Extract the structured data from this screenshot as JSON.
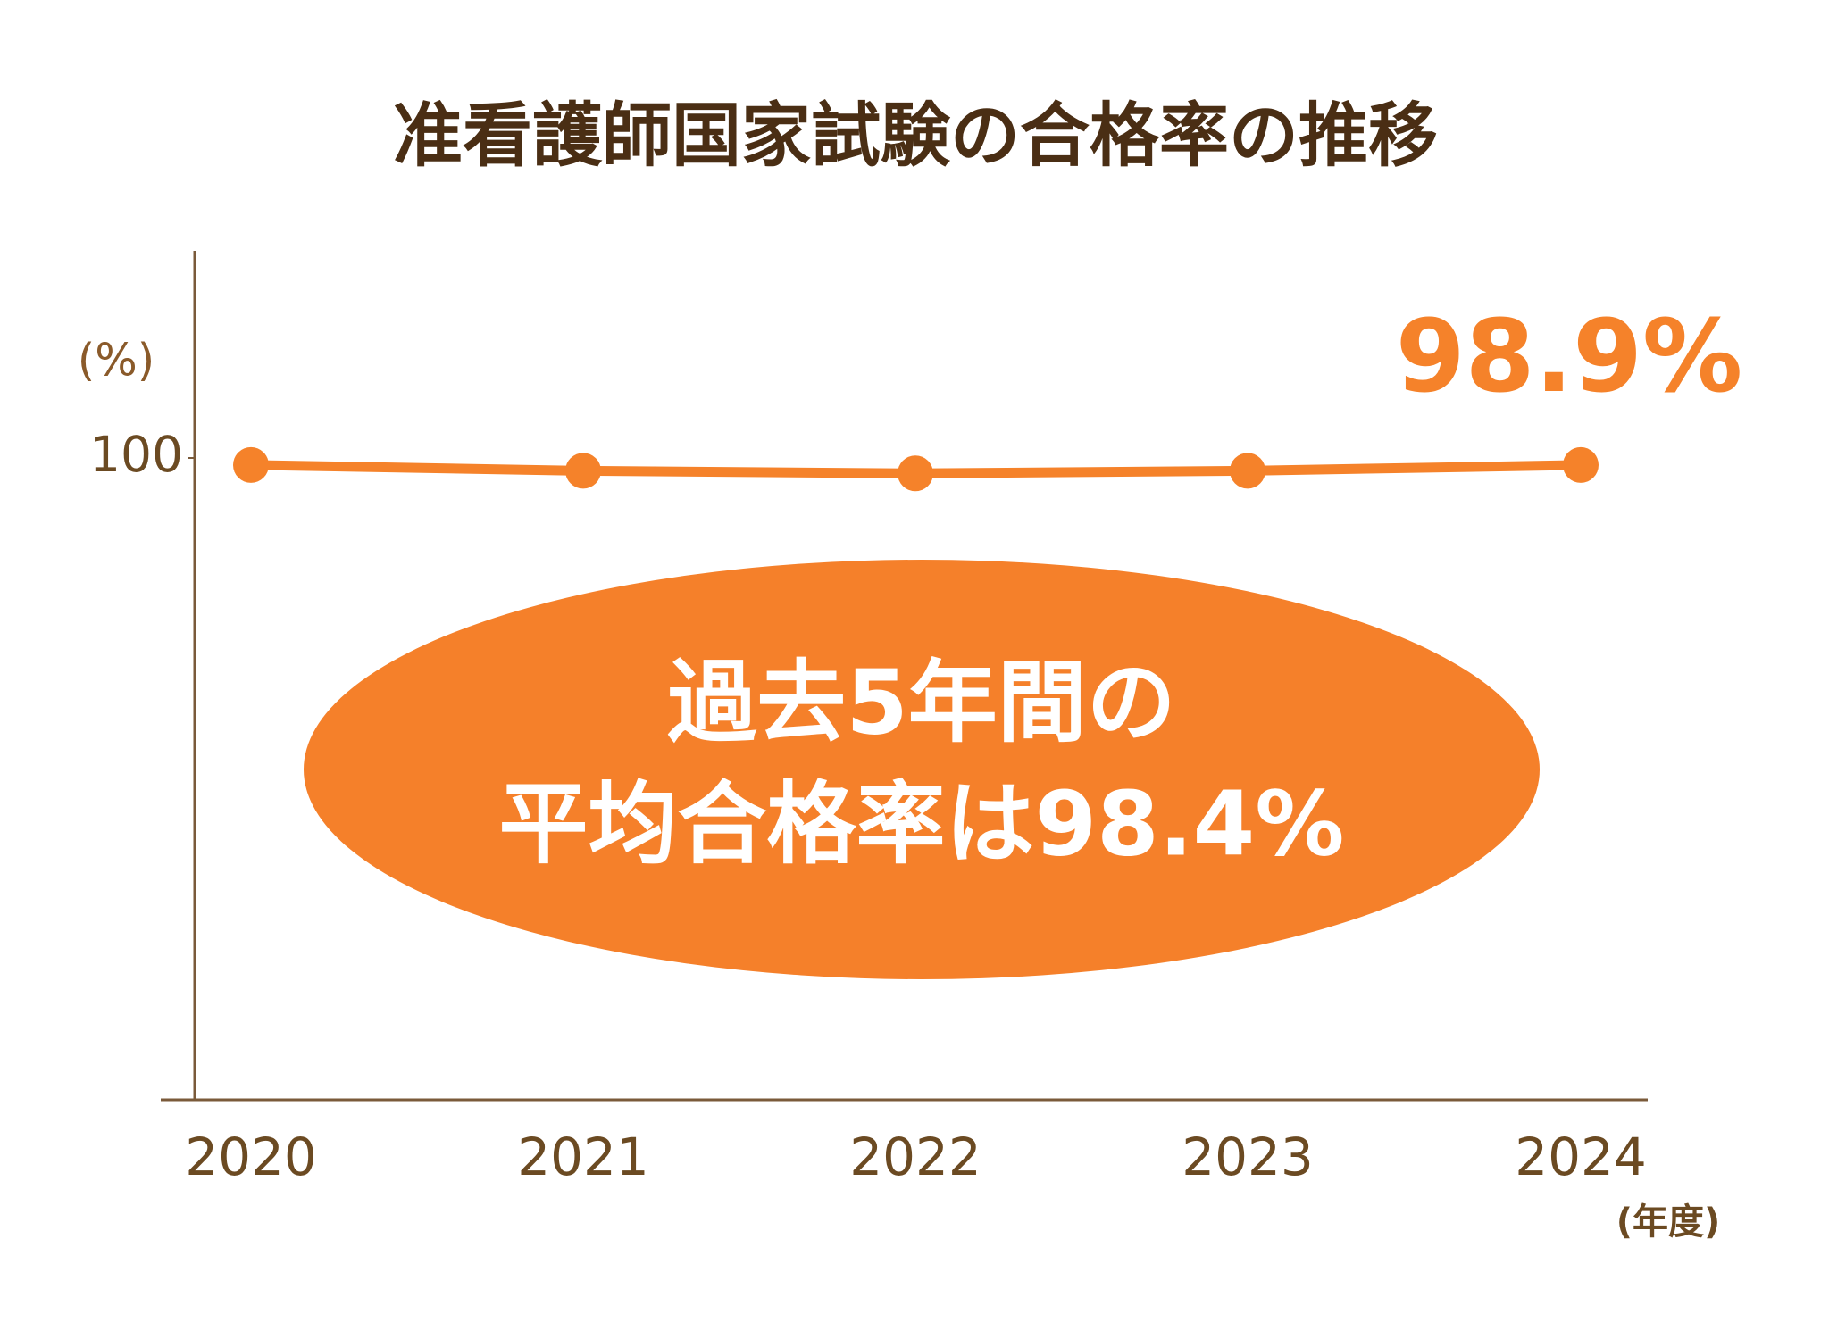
{
  "chart_data": {
    "type": "line",
    "title": "准看護師国家試験の合格率の推移",
    "y_label": "(%)",
    "x_label": "(年度)",
    "categories": [
      "2020",
      "2021",
      "2022",
      "2023",
      "2024"
    ],
    "series": [
      {
        "name": "合格率",
        "color": "#f5822a",
        "values": [
          98.9,
          98.0,
          97.6,
          98.0,
          98.9
        ],
        "value_labels": [
          null,
          null,
          null,
          null,
          "98.9%"
        ]
      }
    ],
    "ylim": [
      0,
      100
    ],
    "yticks": [
      100
    ],
    "annotation": [
      "過去5年間の",
      "平均合格率は98.4%"
    ]
  }
}
